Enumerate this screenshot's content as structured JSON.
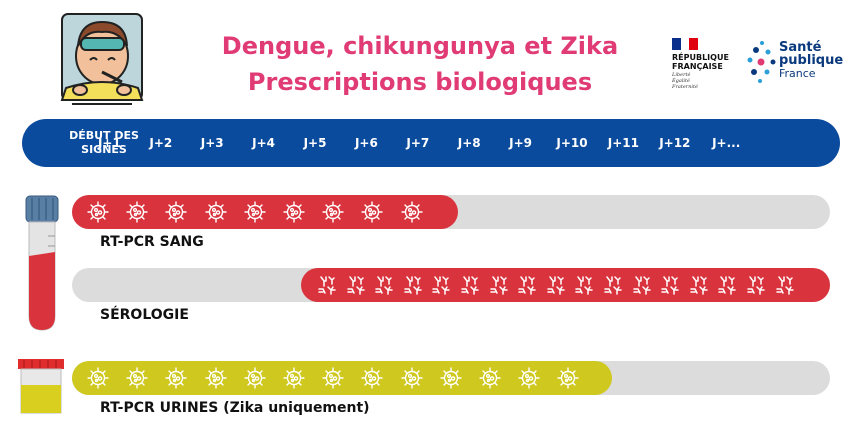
{
  "header": {
    "title_line1": "Dengue, chikungunya et Zika",
    "title_line2": "Prescriptions biologiques"
  },
  "logos": {
    "republique": {
      "line1": "RÉPUBLIQUE",
      "line2": "FRANÇAISE",
      "motto1": "Liberté",
      "motto2": "Égalité",
      "motto3": "Fraternité"
    },
    "sante": {
      "line1": "Santé",
      "line2": "publique",
      "line3": "France"
    }
  },
  "timeline": {
    "start_line1": "DÉBUT DES",
    "start_line2": "SIGNES",
    "days": [
      "J+1",
      "J+2",
      "J+3",
      "J+4",
      "J+5",
      "J+6",
      "J+7",
      "J+8",
      "J+9",
      "J+10",
      "J+11",
      "J+12",
      "J+..."
    ]
  },
  "tests": [
    {
      "label": "RT-PCR SANG",
      "start_day": 0,
      "end_day": 7,
      "marker": "virus-icon",
      "color": "#d9343d"
    },
    {
      "label": "SÉROLOGIE",
      "start_day": 5,
      "end_day": 13,
      "marker": "antibody-icon",
      "color": "#d9343d"
    },
    {
      "label": "RT-PCR URINES (Zika uniquement)",
      "start_day": 0,
      "end_day": 10,
      "marker": "virus-icon",
      "color": "#cfc81f"
    }
  ],
  "colors": {
    "title": "#e03b74",
    "timeline": "#0b4b9e",
    "blood_bar": "#d9343d",
    "urine_bar": "#cfc81f",
    "track": "#dcdcdc"
  }
}
